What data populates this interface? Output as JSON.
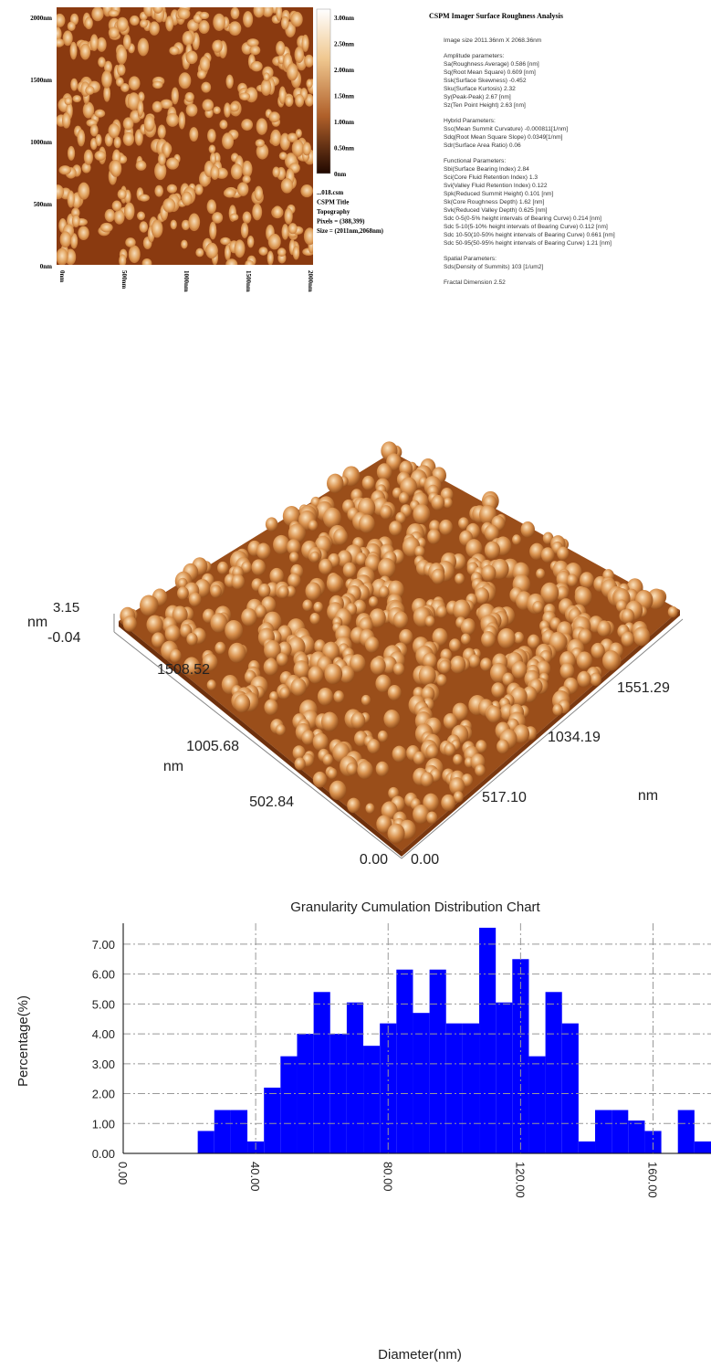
{
  "afm_image": {
    "y_axis_labels": [
      "2000nm",
      "1500nm",
      "1000nm",
      "500nm",
      "0nm"
    ],
    "x_axis_labels": [
      "0nm",
      "500nm",
      "1000nm",
      "1500nm",
      "2000nm"
    ],
    "colorbar_labels": [
      "3.00nm",
      "2.50nm",
      "2.00nm",
      "1.50nm",
      "1.00nm",
      "0.50nm",
      "0nm"
    ],
    "info": [
      "...018.csm",
      "CSPM Title",
      "Topography",
      "Pixels = (388,399)",
      "Size = (2011nm,2068nm)"
    ]
  },
  "roughness": {
    "title": "CSPM Imager Surface Roughness Analysis",
    "image_size": "Image size 2011.36nm X 2068.36nm",
    "sections": [
      {
        "heading": "Amplitude parameters:",
        "lines": [
          "Sa(Roughness Average)    0.586 [nm]",
          "Sq(Root Mean Square)    0.609 [nm]",
          "Ssk(Surface Skewness)    -0.452",
          "Sku(Surface Kurtosis)    2.32",
          "Sy(Peak-Peak)    2.67 [nm]",
          "Sz(Ten Point Height)    2.63 [nm]"
        ]
      },
      {
        "heading": "Hybrid Parameters:",
        "lines": [
          "Ssc(Mean Summit Curvature)    -0.000811[1/nm]",
          "Sdq(Root Mean Square Slope)    0.0349[1/nm]",
          "Sdr(Surface Area Ratio)    0.06"
        ]
      },
      {
        "heading": "Functional Parameters:",
        "lines": [
          "Sbi(Surface Bearing Index)    2.84",
          "Sci(Core Fluid Retention Index)    1.3",
          "Svi(Valley Fluid Retention Index)    0.122",
          "Spk(Reduced Summit Height)    0.101 [nm]",
          "Sk(Core Roughness Depth)    1.62 [nm]",
          "Svk(Reduced Valley Depth)    0.625 [nm]",
          "Sdc 0-5(0-5% height intervals of Bearing Curve)    0.214 [nm]",
          "Sdc 5-10(5-10% height intervals of Bearing Curve)    0.112 [nm]",
          "Sdc 10-50(10-50% height intervals of Bearing Curve)    0.661 [nm]",
          "Sdc 50-95(50-95% height intervals of Bearing Curve)    1.21 [nm]"
        ]
      },
      {
        "heading": "Spatial Parameters:",
        "lines": [
          "Sds(Density of Summits)    103 [1/um2]"
        ]
      }
    ],
    "fractal": "Fractal Dimension    2.52"
  },
  "surface_3d": {
    "z_unit": "nm",
    "z_max": "3.15",
    "z_min": "-0.04",
    "left_axis_labels": [
      "1508.52",
      "1005.68",
      "502.84",
      "0.00"
    ],
    "left_unit": "nm",
    "right_axis_labels": [
      "0.00",
      "517.10",
      "1034.19",
      "1551.29"
    ],
    "right_unit": "nm"
  },
  "chart_data": {
    "type": "histogram",
    "title": "Granularity Cumulation Distribution  Chart",
    "x_label": "Diameter(nm)",
    "y_label": "Percentage(%)",
    "color": "#0000ff",
    "bins": [
      22.5,
      27.5,
      32.5,
      37.5,
      42.5,
      47.5,
      52.5,
      57.5,
      62.5,
      67.5,
      72.5,
      77.5,
      82.5,
      87.5,
      92.5,
      97.5,
      102.5,
      107.5,
      112.5,
      117.5,
      122.5,
      127.5,
      132.5,
      137.5,
      142.5,
      147.5,
      152.5,
      157.5,
      162.5,
      167.5,
      172.5,
      177.5
    ],
    "values": [
      0.75,
      1.45,
      1.45,
      0.4,
      2.2,
      3.25,
      4.0,
      5.4,
      4.0,
      5.05,
      3.6,
      4.35,
      6.15,
      4.7,
      6.15,
      4.35,
      4.35,
      7.55,
      5.05,
      6.5,
      3.25,
      5.4,
      4.35,
      0.4,
      1.45,
      1.45,
      1.1,
      0.75,
      0,
      1.45,
      0.4
    ],
    "xlim": [
      0,
      177.5
    ],
    "ylim": [
      0,
      7.7
    ],
    "xticks": [
      {
        "value": 0,
        "label": "0.00"
      },
      {
        "value": 40,
        "label": "40.00"
      },
      {
        "value": 80,
        "label": "80.00"
      },
      {
        "value": 120,
        "label": "120.00"
      },
      {
        "value": 160,
        "label": "160.00"
      }
    ],
    "yticks": [
      {
        "value": 0,
        "label": "0.00"
      },
      {
        "value": 1,
        "label": "1.00"
      },
      {
        "value": 2,
        "label": "2.00"
      },
      {
        "value": 3,
        "label": "3.00"
      },
      {
        "value": 4,
        "label": "4.00"
      },
      {
        "value": 5,
        "label": "5.00"
      },
      {
        "value": 6,
        "label": "6.00"
      },
      {
        "value": 7,
        "label": "7.00"
      }
    ],
    "grid": true
  }
}
